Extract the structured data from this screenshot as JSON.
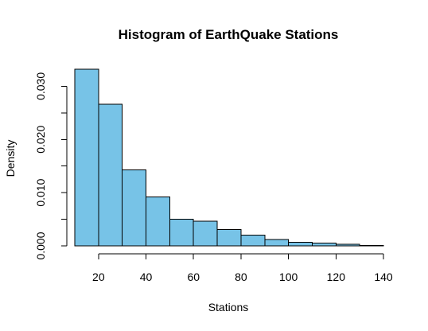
{
  "chart_data": {
    "type": "bar",
    "title": "Histogram of EarthQuake Stations",
    "xlabel": "Stations",
    "ylabel": "Density",
    "bar_color": "#77c3e7",
    "bar_border_color": "#000000",
    "bins": [
      {
        "start": 10,
        "end": 20,
        "density": 0.0332
      },
      {
        "start": 20,
        "end": 30,
        "density": 0.0266
      },
      {
        "start": 30,
        "end": 40,
        "density": 0.0143
      },
      {
        "start": 40,
        "end": 50,
        "density": 0.0092
      },
      {
        "start": 50,
        "end": 60,
        "density": 0.005
      },
      {
        "start": 60,
        "end": 70,
        "density": 0.0046
      },
      {
        "start": 70,
        "end": 80,
        "density": 0.0031
      },
      {
        "start": 80,
        "end": 90,
        "density": 0.002
      },
      {
        "start": 90,
        "end": 100,
        "density": 0.0012
      },
      {
        "start": 100,
        "end": 110,
        "density": 0.0007
      },
      {
        "start": 110,
        "end": 120,
        "density": 0.0005
      },
      {
        "start": 120,
        "end": 130,
        "density": 0.0003
      },
      {
        "start": 130,
        "end": 140,
        "density": 0.0001
      }
    ],
    "xlim": [
      10,
      140
    ],
    "ylim": [
      0,
      0.0332
    ],
    "x_ticks": [
      {
        "value": 20,
        "label": "20"
      },
      {
        "value": 40,
        "label": "40"
      },
      {
        "value": 60,
        "label": "60"
      },
      {
        "value": 80,
        "label": "80"
      },
      {
        "value": 100,
        "label": "100"
      },
      {
        "value": 120,
        "label": "120"
      },
      {
        "value": 140,
        "label": "140"
      }
    ],
    "y_ticks": [
      {
        "value": 0.0,
        "label": "0.000"
      },
      {
        "value": 0.005,
        "label": ""
      },
      {
        "value": 0.01,
        "label": "0.010"
      },
      {
        "value": 0.015,
        "label": ""
      },
      {
        "value": 0.02,
        "label": "0.020"
      },
      {
        "value": 0.025,
        "label": ""
      },
      {
        "value": 0.03,
        "label": "0.030"
      }
    ],
    "grid": false,
    "legend": "none"
  }
}
